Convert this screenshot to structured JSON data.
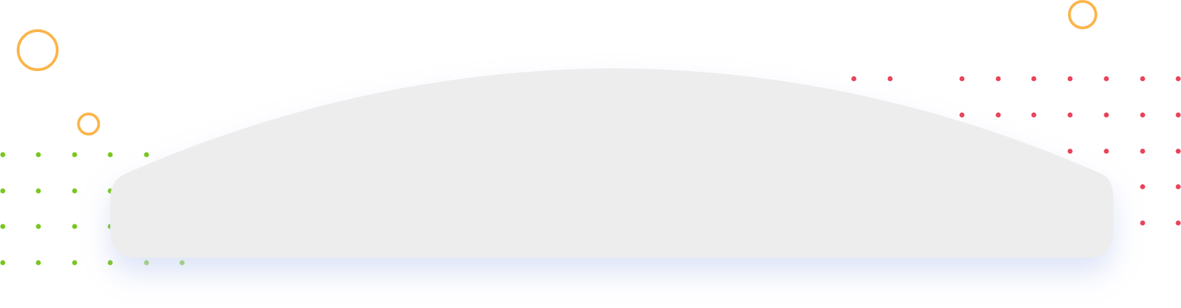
{
  "colors": {
    "background": "#ffffff",
    "card": "#ededed",
    "ring": "#fbb54b",
    "dots_left": "#7ac620",
    "dots_right": "#e9435a",
    "shadow": "#9fb4ea"
  },
  "decor": {
    "rings": [
      "ring-large",
      "ring-small",
      "ring-top-right"
    ],
    "dot_grids": [
      "dot-grid-left",
      "dot-grid-right"
    ]
  }
}
